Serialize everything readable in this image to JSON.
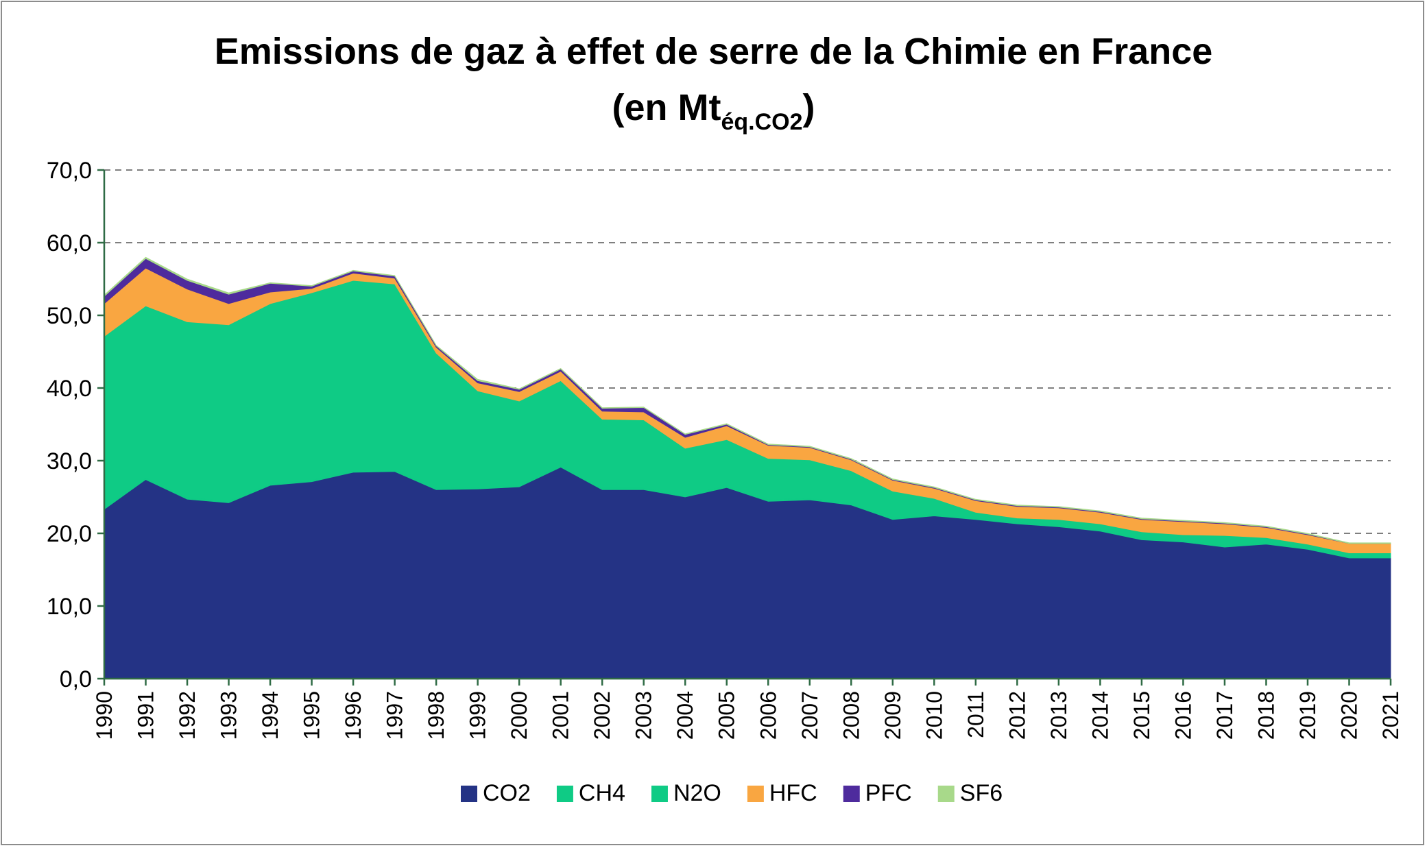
{
  "chart_data": {
    "type": "area",
    "stacked": true,
    "title": "Emissions de gaz à effet de serre de la Chimie en France",
    "subtitle_main": "(en Mt",
    "subtitle_sub": "éq.CO2",
    "subtitle_end": ")",
    "ylim": [
      0,
      70
    ],
    "y_ticks": [
      "0,0",
      "10,0",
      "20,0",
      "30,0",
      "40,0",
      "50,0",
      "60,0",
      "70,0"
    ],
    "y_tick_values": [
      0,
      10,
      20,
      30,
      40,
      50,
      60,
      70
    ],
    "grid": true,
    "legend_position": "bottom",
    "categories": [
      "1990",
      "1991",
      "1992",
      "1993",
      "1994",
      "1995",
      "1996",
      "1997",
      "1998",
      "1999",
      "2000",
      "2001",
      "2002",
      "2003",
      "2004",
      "2005",
      "2006",
      "2007",
      "2008",
      "2009",
      "2010",
      "2011",
      "2012",
      "2013",
      "2014",
      "2015",
      "2016",
      "2017",
      "2018",
      "2019",
      "2020",
      "2021"
    ],
    "series": [
      {
        "name": "CO2",
        "color": "#243385",
        "values": [
          23.3,
          27.4,
          24.7,
          24.2,
          26.6,
          27.1,
          28.4,
          28.5,
          26.0,
          26.1,
          26.4,
          29.1,
          26.0,
          26.0,
          25.0,
          26.3,
          24.4,
          24.6,
          23.9,
          21.9,
          22.4,
          21.9,
          21.3,
          20.9,
          20.3,
          19.1,
          18.8,
          18.1,
          18.5,
          17.8,
          16.6,
          16.6
        ]
      },
      {
        "name": "CH4",
        "color": "#0fcb85",
        "values": [
          0.2,
          0.2,
          0.2,
          0.2,
          0.2,
          0.2,
          0.2,
          0.2,
          0.2,
          0.2,
          0.2,
          0.2,
          0.2,
          0.2,
          0.2,
          0.2,
          0.2,
          0.2,
          0.2,
          0.2,
          0.2,
          0.2,
          0.2,
          0.2,
          0.2,
          0.2,
          0.2,
          0.2,
          0.2,
          0.2,
          0.2,
          0.2
        ]
      },
      {
        "name": "N2O",
        "color": "#0fcb85",
        "values": [
          23.6,
          23.7,
          24.2,
          24.3,
          24.8,
          25.8,
          26.2,
          25.6,
          18.6,
          13.3,
          11.6,
          11.7,
          9.5,
          9.4,
          6.5,
          6.4,
          5.7,
          5.3,
          4.5,
          3.7,
          2.2,
          0.8,
          0.6,
          0.8,
          0.8,
          0.9,
          0.8,
          1.4,
          0.7,
          0.5,
          0.5,
          0.5
        ]
      },
      {
        "name": "HFC",
        "color": "#f9a641",
        "values": [
          4.5,
          5.2,
          4.5,
          2.9,
          1.6,
          0.6,
          1.0,
          0.8,
          0.8,
          1.1,
          1.3,
          1.3,
          1.1,
          1.1,
          1.5,
          1.9,
          1.8,
          1.7,
          1.5,
          1.5,
          1.4,
          1.6,
          1.6,
          1.6,
          1.6,
          1.7,
          1.8,
          1.6,
          1.4,
          1.3,
          1.3,
          1.3
        ]
      },
      {
        "name": "PFC",
        "color": "#4e2b9d",
        "values": [
          1.0,
          1.3,
          1.2,
          1.3,
          1.2,
          0.3,
          0.3,
          0.3,
          0.2,
          0.3,
          0.3,
          0.3,
          0.4,
          0.6,
          0.4,
          0.2,
          0.1,
          0.1,
          0.1,
          0.1,
          0.1,
          0.1,
          0.1,
          0.1,
          0.1,
          0.1,
          0.1,
          0.1,
          0.1,
          0.1,
          0.0,
          0.0
        ]
      },
      {
        "name": "SF6",
        "color": "#a8d98a",
        "values": [
          0.2,
          0.2,
          0.2,
          0.2,
          0.1,
          0.1,
          0.1,
          0.1,
          0.1,
          0.2,
          0.1,
          0.1,
          0.1,
          0.1,
          0.1,
          0.1,
          0.1,
          0.1,
          0.1,
          0.1,
          0.1,
          0.1,
          0.1,
          0.1,
          0.1,
          0.1,
          0.1,
          0.1,
          0.1,
          0.1,
          0.1,
          0.1
        ]
      }
    ]
  }
}
